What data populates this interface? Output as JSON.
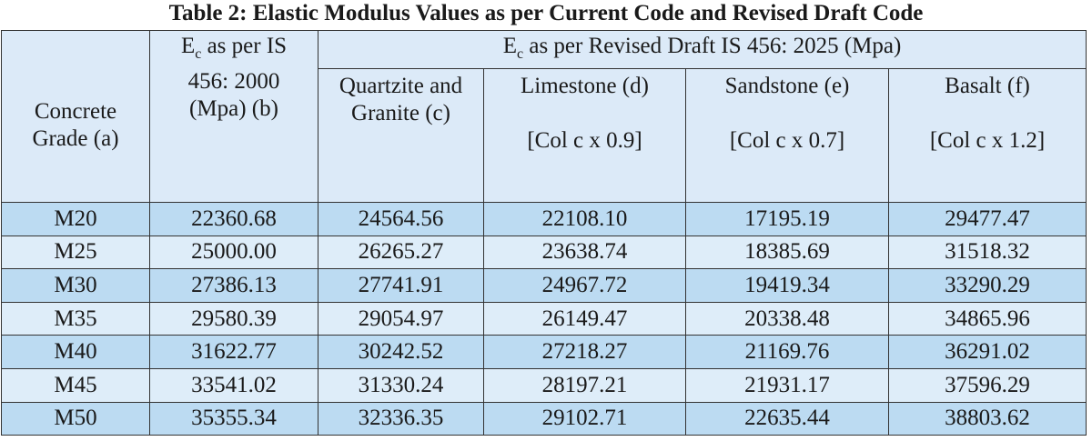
{
  "title": "Table 2: Elastic Modulus Values as per Current Code and Revised Draft Code",
  "header": {
    "grade": "Concrete Grade (a)",
    "current": {
      "prefix": "E",
      "subscript": "c",
      "text": " as per IS 456: 2000 (Mpa) (b)"
    },
    "revised": {
      "prefix": "E",
      "subscript": "c",
      "text": " as per Revised Draft IS 456: 2025 (Mpa)"
    },
    "columns": [
      {
        "name": "Quartzite and Granite (c)",
        "note": null
      },
      {
        "name": "Limestone (d)",
        "note": "[Col c x 0.9]"
      },
      {
        "name": "Sandstone (e)",
        "note": "[Col c x 0.7]"
      },
      {
        "name": "Basalt (f)",
        "note": "[Col c x 1.2]"
      }
    ]
  },
  "table": {
    "rows": [
      [
        "M20",
        "22360.68",
        "24564.56",
        "22108.10",
        "17195.19",
        "29477.47"
      ],
      [
        "M25",
        "25000.00",
        "26265.27",
        "23638.74",
        "18385.69",
        "31518.32"
      ],
      [
        "M30",
        "27386.13",
        "27741.91",
        "24967.72",
        "19419.34",
        "33290.29"
      ],
      [
        "M35",
        "29580.39",
        "29054.97",
        "26149.47",
        "20338.48",
        "34865.96"
      ],
      [
        "M40",
        "31622.77",
        "30242.52",
        "27218.27",
        "21169.76",
        "36291.02"
      ],
      [
        "M45",
        "33541.02",
        "31330.24",
        "28197.21",
        "21931.17",
        "37596.29"
      ],
      [
        "M50",
        "35355.34",
        "32336.35",
        "29102.71",
        "22635.44",
        "38803.62"
      ]
    ]
  }
}
